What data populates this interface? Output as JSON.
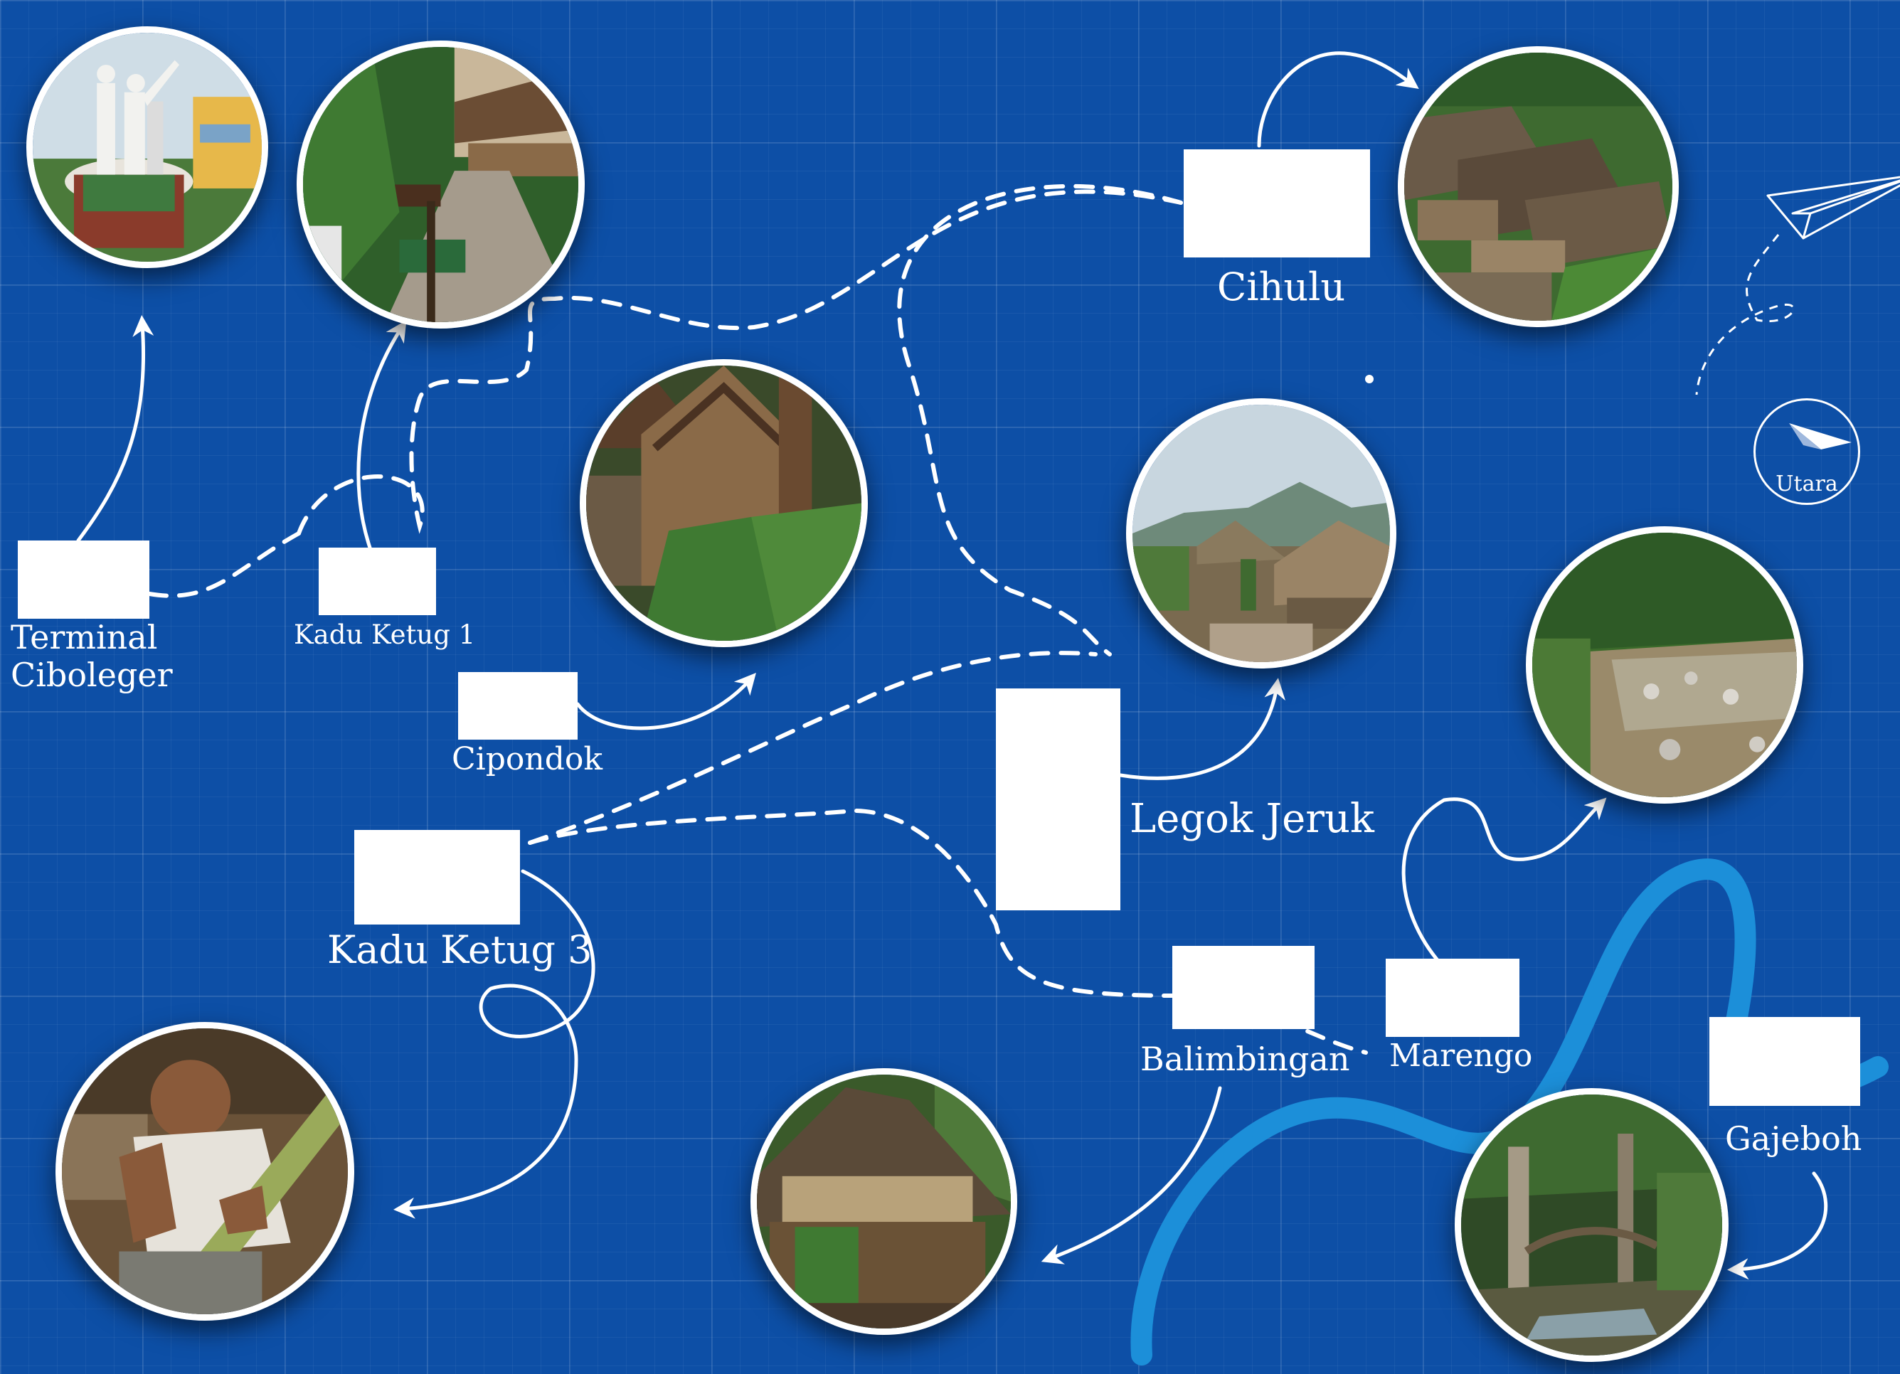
{
  "map": {
    "background": "#0d4fa6",
    "river_color": "#1c8fd9",
    "locations": [
      {
        "id": "terminal-ciboleger",
        "label": "Terminal\nCiboleger"
      },
      {
        "id": "kadu-ketug-1",
        "label": "Kadu Ketug 1"
      },
      {
        "id": "cipondok",
        "label": "Cipondok"
      },
      {
        "id": "kadu-ketug-3",
        "label": "Kadu Ketug 3"
      },
      {
        "id": "cihulu",
        "label": "Cihulu"
      },
      {
        "id": "legok-jeruk",
        "label": "Legok Jeruk"
      },
      {
        "id": "balimbingan",
        "label": "Balimbingan"
      },
      {
        "id": "marengo",
        "label": "Marengo"
      },
      {
        "id": "gajeboh",
        "label": "Gajeboh"
      }
    ],
    "compass": {
      "label": "Utara",
      "icon": "compass-needle-icon"
    },
    "decoration": {
      "icon": "paper-plane-icon"
    },
    "photos": [
      {
        "id": "ciboleger-monument",
        "subject": "statue-monument"
      },
      {
        "id": "kadu-ketug-1-path",
        "subject": "village-path-sign"
      },
      {
        "id": "cipondok-house",
        "subject": "wooden-house"
      },
      {
        "id": "cihulu-houses",
        "subject": "thatched-houses-row"
      },
      {
        "id": "legok-jeruk-village",
        "subject": "village-mountains"
      },
      {
        "id": "marengo-river",
        "subject": "rocky-river"
      },
      {
        "id": "kadu-ketug-3-craftsman",
        "subject": "bamboo-craftsman"
      },
      {
        "id": "balimbingan-hut",
        "subject": "woven-hut"
      },
      {
        "id": "gajeboh-forest",
        "subject": "forest-bridge"
      }
    ]
  }
}
